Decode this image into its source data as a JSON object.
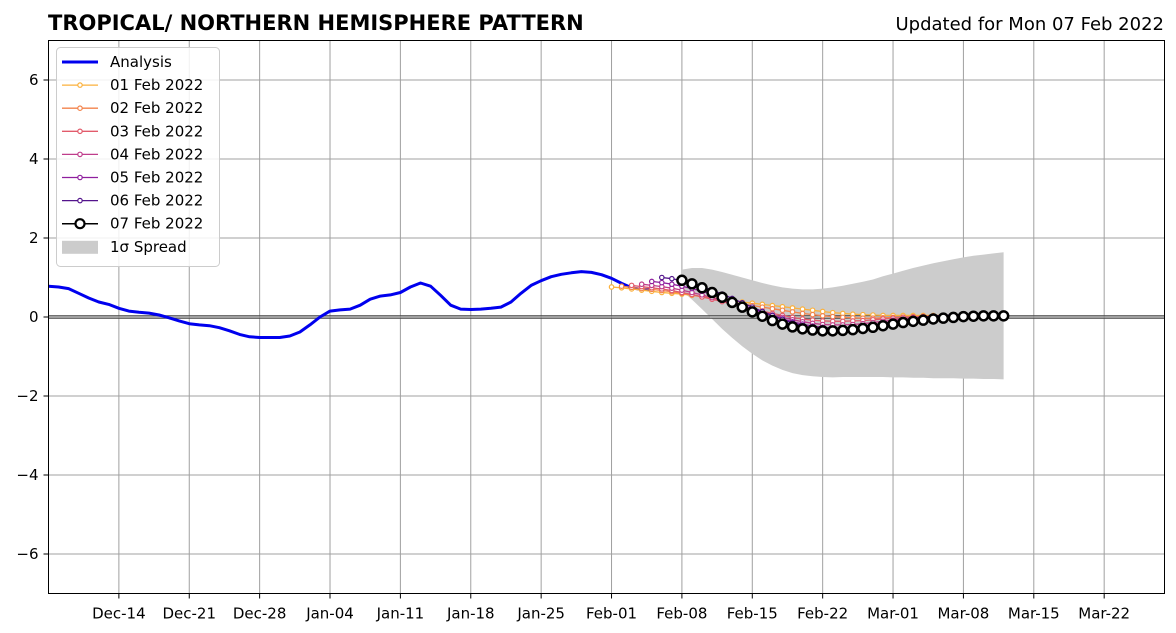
{
  "chart_data": {
    "type": "line",
    "title": "TROPICAL/ NORTHERN HEMISPHERE PATTERN",
    "subtitle": "Updated for Mon 07 Feb 2022",
    "xlabel": "",
    "ylabel": "",
    "x_start": "2021-12-07",
    "x_end": "2022-03-28",
    "ylim": [
      -7,
      7
    ],
    "y_ticks": [
      -6,
      -4,
      -2,
      0,
      2,
      4,
      6
    ],
    "y_tick_labels": [
      "−6",
      "−4",
      "−2",
      "0",
      "2",
      "4",
      "6"
    ],
    "x_ticks": [
      {
        "date": "2021-12-14",
        "label": "Dec-14"
      },
      {
        "date": "2021-12-21",
        "label": "Dec-21"
      },
      {
        "date": "2021-12-28",
        "label": "Dec-28"
      },
      {
        "date": "2022-01-04",
        "label": "Jan-04"
      },
      {
        "date": "2022-01-11",
        "label": "Jan-11"
      },
      {
        "date": "2022-01-18",
        "label": "Jan-18"
      },
      {
        "date": "2022-01-25",
        "label": "Jan-25"
      },
      {
        "date": "2022-02-01",
        "label": "Feb-01"
      },
      {
        "date": "2022-02-08",
        "label": "Feb-08"
      },
      {
        "date": "2022-02-15",
        "label": "Feb-15"
      },
      {
        "date": "2022-02-22",
        "label": "Feb-22"
      },
      {
        "date": "2022-03-01",
        "label": "Mar-01"
      },
      {
        "date": "2022-03-08",
        "label": "Mar-08"
      },
      {
        "date": "2022-03-15",
        "label": "Mar-15"
      },
      {
        "date": "2022-03-22",
        "label": "Mar-22"
      }
    ],
    "grid": true,
    "legend_position": "top-left",
    "zero_line": true,
    "analysis": {
      "name": "Analysis",
      "color": "#0000ee",
      "start": "2021-12-07",
      "values": [
        0.78,
        0.76,
        0.72,
        0.6,
        0.48,
        0.38,
        0.32,
        0.22,
        0.15,
        0.12,
        0.1,
        0.05,
        -0.02,
        -0.1,
        -0.17,
        -0.2,
        -0.22,
        -0.27,
        -0.35,
        -0.44,
        -0.5,
        -0.52,
        -0.52,
        -0.52,
        -0.48,
        -0.38,
        -0.2,
        0.0,
        0.15,
        0.18,
        0.2,
        0.3,
        0.45,
        0.53,
        0.56,
        0.62,
        0.76,
        0.86,
        0.78,
        0.55,
        0.3,
        0.2,
        0.19,
        0.2,
        0.22,
        0.25,
        0.38,
        0.6,
        0.8,
        0.92,
        1.02,
        1.08,
        1.12,
        1.15,
        1.13,
        1.07,
        0.98,
        0.85,
        0.74,
        0.7,
        0.7
      ]
    },
    "forecasts": [
      {
        "name": "01 Feb 2022",
        "color": "#fbb13c",
        "start": "2022-02-01",
        "values": [
          0.76,
          0.74,
          0.71,
          0.68,
          0.65,
          0.62,
          0.6,
          0.58,
          0.55,
          0.52,
          0.49,
          0.45,
          0.42,
          0.38,
          0.35,
          0.32,
          0.29,
          0.26,
          0.23,
          0.2,
          0.17,
          0.14,
          0.11,
          0.09,
          0.07,
          0.06,
          0.05,
          0.04,
          0.04,
          0.04,
          0.04,
          0.04,
          0.04,
          0.04,
          0.05,
          0.05
        ]
      },
      {
        "name": "02 Feb 2022",
        "color": "#f3834b",
        "start": "2022-02-02",
        "values": [
          0.78,
          0.75,
          0.72,
          0.7,
          0.67,
          0.64,
          0.6,
          0.56,
          0.51,
          0.47,
          0.43,
          0.38,
          0.33,
          0.29,
          0.25,
          0.21,
          0.17,
          0.13,
          0.09,
          0.06,
          0.03,
          0.01,
          -0.01,
          -0.02,
          -0.03,
          -0.03,
          -0.02,
          -0.01,
          0.0,
          0.01,
          0.02,
          0.03,
          0.04,
          0.05,
          0.05
        ]
      },
      {
        "name": "03 Feb 2022",
        "color": "#e25b6b",
        "start": "2022-02-03",
        "values": [
          0.8,
          0.77,
          0.74,
          0.71,
          0.67,
          0.62,
          0.57,
          0.51,
          0.45,
          0.39,
          0.33,
          0.27,
          0.21,
          0.15,
          0.09,
          0.04,
          -0.01,
          -0.05,
          -0.08,
          -0.1,
          -0.11,
          -0.11,
          -0.1,
          -0.09,
          -0.07,
          -0.05,
          -0.03,
          -0.01,
          0.0,
          0.01,
          0.02,
          0.03,
          0.04,
          0.05
        ]
      },
      {
        "name": "04 Feb 2022",
        "color": "#bf3d8b",
        "start": "2022-02-04",
        "values": [
          0.83,
          0.8,
          0.77,
          0.73,
          0.68,
          0.62,
          0.56,
          0.49,
          0.42,
          0.35,
          0.27,
          0.19,
          0.12,
          0.05,
          -0.01,
          -0.07,
          -0.12,
          -0.16,
          -0.19,
          -0.2,
          -0.2,
          -0.19,
          -0.17,
          -0.14,
          -0.11,
          -0.08,
          -0.05,
          -0.02,
          0.0,
          0.02,
          0.03,
          0.04,
          0.05
        ]
      },
      {
        "name": "05 Feb 2022",
        "color": "#8f1f9e",
        "start": "2022-02-05",
        "values": [
          0.9,
          0.87,
          0.83,
          0.78,
          0.72,
          0.65,
          0.57,
          0.48,
          0.39,
          0.3,
          0.21,
          0.12,
          0.03,
          -0.05,
          -0.12,
          -0.18,
          -0.23,
          -0.26,
          -0.28,
          -0.28,
          -0.27,
          -0.24,
          -0.2,
          -0.16,
          -0.12,
          -0.08,
          -0.04,
          -0.01,
          0.02,
          0.04,
          0.05,
          0.06
        ]
      },
      {
        "name": "06 Feb 2022",
        "color": "#53148c",
        "start": "2022-02-06",
        "values": [
          1.0,
          0.97,
          0.92,
          0.85,
          0.77,
          0.68,
          0.58,
          0.47,
          0.36,
          0.25,
          0.14,
          0.04,
          -0.06,
          -0.15,
          -0.22,
          -0.28,
          -0.32,
          -0.34,
          -0.34,
          -0.32,
          -0.28,
          -0.23,
          -0.18,
          -0.13,
          -0.08,
          -0.04,
          -0.01,
          0.02,
          0.04,
          0.05,
          0.06
        ]
      }
    ],
    "latest": {
      "name": "07 Feb 2022",
      "color": "#000000",
      "start": "2022-02-08",
      "values": [
        0.93,
        0.84,
        0.74,
        0.62,
        0.5,
        0.37,
        0.25,
        0.13,
        0.02,
        -0.09,
        -0.18,
        -0.25,
        -0.3,
        -0.33,
        -0.35,
        -0.35,
        -0.34,
        -0.32,
        -0.29,
        -0.26,
        -0.22,
        -0.18,
        -0.14,
        -0.11,
        -0.08,
        -0.05,
        -0.03,
        -0.01,
        0.01,
        0.02,
        0.03,
        0.03,
        0.03
      ]
    },
    "spread": {
      "name": "1σ Spread",
      "color": "#cccccc",
      "start": "2022-02-08",
      "upper": [
        1.2,
        1.24,
        1.24,
        1.2,
        1.14,
        1.07,
        1.0,
        0.93,
        0.86,
        0.8,
        0.75,
        0.72,
        0.7,
        0.7,
        0.72,
        0.75,
        0.79,
        0.84,
        0.89,
        0.95,
        1.03,
        1.1,
        1.17,
        1.24,
        1.3,
        1.36,
        1.41,
        1.46,
        1.51,
        1.55,
        1.58,
        1.61,
        1.64
      ],
      "lower": [
        0.66,
        0.44,
        0.2,
        -0.05,
        -0.3,
        -0.53,
        -0.74,
        -0.93,
        -1.1,
        -1.23,
        -1.34,
        -1.42,
        -1.47,
        -1.5,
        -1.52,
        -1.53,
        -1.52,
        -1.52,
        -1.52,
        -1.52,
        -1.52,
        -1.53,
        -1.53,
        -1.54,
        -1.54,
        -1.55,
        -1.55,
        -1.55,
        -1.56,
        -1.56,
        -1.57,
        -1.57,
        -1.58
      ]
    }
  }
}
